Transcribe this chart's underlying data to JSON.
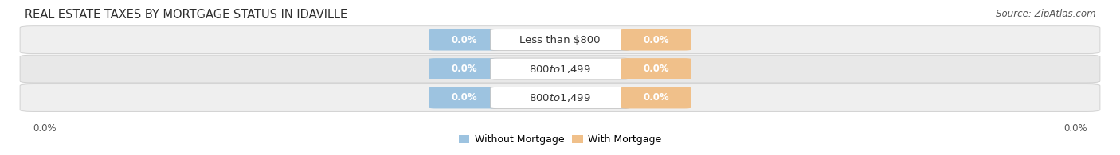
{
  "title": "REAL ESTATE TAXES BY MORTGAGE STATUS IN IDAVILLE",
  "source": "Source: ZipAtlas.com",
  "rows": [
    {
      "label": "Less than $800",
      "without_mortgage": 0.0,
      "with_mortgage": 0.0
    },
    {
      "label": "$800 to $1,499",
      "without_mortgage": 0.0,
      "with_mortgage": 0.0
    },
    {
      "label": "$800 to $1,499",
      "without_mortgage": 0.0,
      "with_mortgage": 0.0
    }
  ],
  "legend": [
    "Without Mortgage",
    "With Mortgage"
  ],
  "color_without": "#9dc3e0",
  "color_with": "#f0c08a",
  "row_bg_colors": [
    "#efefef",
    "#e8e8e8",
    "#efefef"
  ],
  "axis_label_left": "0.0%",
  "axis_label_right": "0.0%",
  "title_fontsize": 10.5,
  "source_fontsize": 8.5,
  "label_fontsize": 9.5,
  "bar_value_fontsize": 8.5
}
